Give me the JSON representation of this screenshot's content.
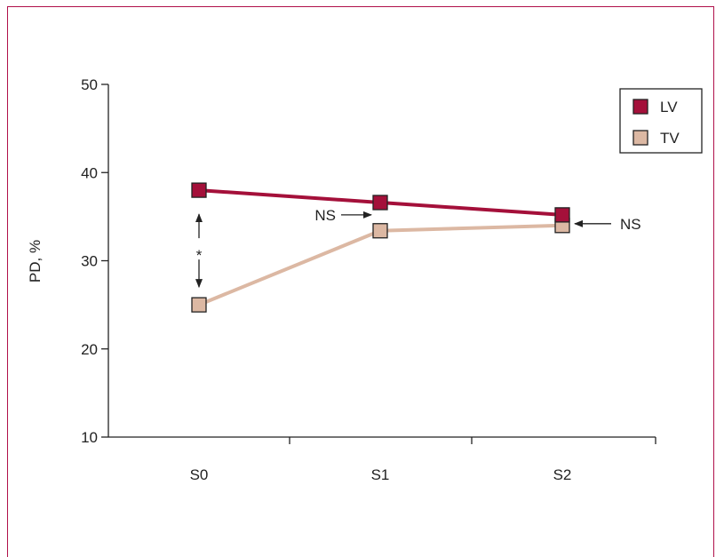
{
  "chart_data": {
    "type": "line",
    "categories": [
      "S0",
      "S1",
      "S2"
    ],
    "series": [
      {
        "name": "LV",
        "values": [
          38,
          36.6,
          35.2
        ],
        "color": "#a4103a"
      },
      {
        "name": "TV",
        "values": [
          25,
          33.4,
          34
        ],
        "color": "#dcb8a3"
      }
    ],
    "title": "",
    "xlabel": "",
    "ylabel": "PD, %",
    "ylim": [
      10,
      50
    ],
    "yticks": [
      10,
      20,
      30,
      40,
      50
    ],
    "grid": false,
    "legend_position": "top-right",
    "annotations": [
      {
        "id": "star",
        "text": "*",
        "category": "S0",
        "from": 25,
        "to": 38
      },
      {
        "id": "ns1",
        "text": "NS",
        "category": "S1",
        "value": 35.2,
        "direction": "right"
      },
      {
        "id": "ns2",
        "text": "NS",
        "category": "S2",
        "value": 34.2,
        "direction": "left"
      }
    ]
  }
}
